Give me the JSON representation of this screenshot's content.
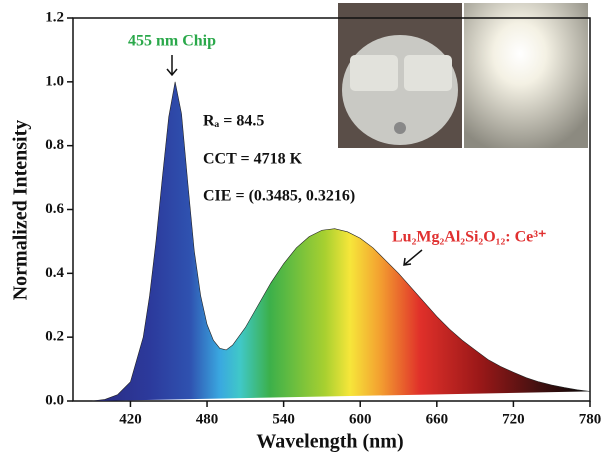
{
  "chart_data": {
    "type": "area",
    "x_label": "Wavelength (nm)",
    "y_label": "Normalized Intensity",
    "x": [
      390,
      400,
      410,
      420,
      430,
      435,
      440,
      445,
      450,
      455,
      460,
      465,
      470,
      475,
      480,
      485,
      490,
      495,
      500,
      510,
      520,
      530,
      540,
      550,
      560,
      570,
      580,
      590,
      600,
      610,
      620,
      630,
      640,
      650,
      660,
      670,
      680,
      690,
      700,
      710,
      720,
      730,
      740,
      750,
      760,
      770,
      780
    ],
    "series": [
      {
        "values": [
          0,
          0.005,
          0.02,
          0.06,
          0.2,
          0.33,
          0.5,
          0.7,
          0.89,
          1.0,
          0.9,
          0.68,
          0.47,
          0.33,
          0.24,
          0.19,
          0.165,
          0.16,
          0.175,
          0.23,
          0.3,
          0.37,
          0.43,
          0.48,
          0.515,
          0.535,
          0.54,
          0.53,
          0.51,
          0.48,
          0.44,
          0.4,
          0.355,
          0.31,
          0.265,
          0.225,
          0.19,
          0.16,
          0.13,
          0.108,
          0.09,
          0.073,
          0.06,
          0.05,
          0.042,
          0.035,
          0.03
        ]
      }
    ],
    "xlim": [
      375,
      780
    ],
    "xticks": [
      420,
      480,
      540,
      600,
      660,
      720,
      780
    ],
    "ylim": [
      0,
      1.2
    ],
    "yticks": [
      {
        "value": 0,
        "label": "0.0"
      },
      0.2,
      0.4,
      0.6,
      0.8,
      {
        "value": 1,
        "label": "1.0"
      },
      1.2
    ],
    "annotations": {
      "chip": "455 nm Chip",
      "ra": "Rₐ = 84.5",
      "cct": "CCT = 4718 K",
      "cie": "CIE = (0.3485, 0.3216)",
      "phosphor": "Lu₂Mg₂Al₂Si₂O₁₂: Ce³⁺"
    }
  }
}
